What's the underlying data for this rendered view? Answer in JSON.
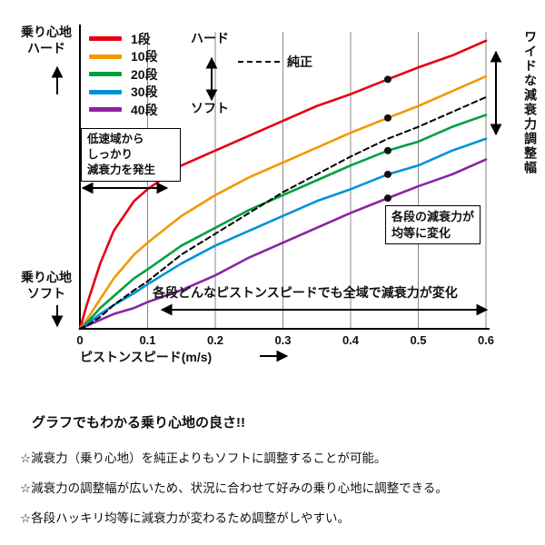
{
  "chart_data": {
    "type": "line",
    "x": [
      0,
      0.01,
      0.03,
      0.05,
      0.08,
      0.1,
      0.15,
      0.2,
      0.25,
      0.3,
      0.35,
      0.4,
      0.455,
      0.5,
      0.55,
      0.6
    ],
    "xlim": [
      0,
      0.6
    ],
    "ylim": [
      0,
      100
    ],
    "x_ticks": [
      0,
      0.1,
      0.2,
      0.3,
      0.4,
      0.5,
      0.6
    ],
    "xlabel": "ピストンスピード(m/s)",
    "grid": "vertical-only",
    "legend_position": "top-left",
    "marker_x": 0.455,
    "series": [
      {
        "name": "1段",
        "color": "#e60013",
        "values": [
          0,
          8,
          22,
          33,
          43,
          47,
          55,
          60,
          65,
          70,
          75,
          79,
          84,
          88,
          92,
          97
        ]
      },
      {
        "name": "10段",
        "color": "#f39800",
        "values": [
          0,
          3,
          10,
          17,
          25,
          29,
          38,
          45,
          51,
          56,
          61,
          66,
          71,
          75,
          80,
          85
        ]
      },
      {
        "name": "20段",
        "color": "#00a040",
        "values": [
          0,
          2,
          7,
          11,
          17,
          20,
          28,
          34,
          40,
          45,
          50,
          55,
          60,
          63,
          68,
          72
        ]
      },
      {
        "name": "30段",
        "color": "#0092d8",
        "values": [
          0,
          1.5,
          5,
          8,
          12,
          15,
          22,
          28,
          33,
          38,
          43,
          47,
          52,
          55,
          60,
          64
        ]
      },
      {
        "name": "40段",
        "color": "#8a24a0",
        "values": [
          0,
          1,
          3,
          5,
          7,
          9,
          13,
          18,
          24,
          29,
          34,
          39,
          44,
          48,
          52,
          57
        ]
      },
      {
        "name": "純正",
        "color": "#000000",
        "dashed": true,
        "values": [
          0,
          1,
          4,
          8,
          13,
          16,
          25,
          32,
          39,
          46,
          52,
          58,
          64,
          68,
          73,
          78
        ]
      }
    ]
  },
  "chart_labels": {
    "y_top": "乗り心地\nハード",
    "y_bottom": "乗り心地\nソフト",
    "legend_hard": "ハード",
    "legend_soft": "ソフト",
    "stock_label": "純正",
    "xlabel": "ピストンスピード(m/s)",
    "right_label": "ワイドな減衰力調整幅"
  },
  "annotations": {
    "low_speed_box": "低速域から\nしっかり\n減衰力を発生",
    "equal_box": "各段の減衰力が\n均等に変化",
    "full_range": "各段どんなピストンスピードでも全域で減衰力が変化"
  },
  "footer": {
    "heading": "グラフでもわかる乗り心地の良さ!!",
    "bullets": [
      "☆減衰力（乗り心地）を純正よりもソフトに調整することが可能。",
      "☆減衰力の調整幅が広いため、状況に合わせて好みの乗り心地に調整できる。",
      "☆各段ハッキリ均等に減衰力が変わるため調整がしやすい。"
    ]
  }
}
